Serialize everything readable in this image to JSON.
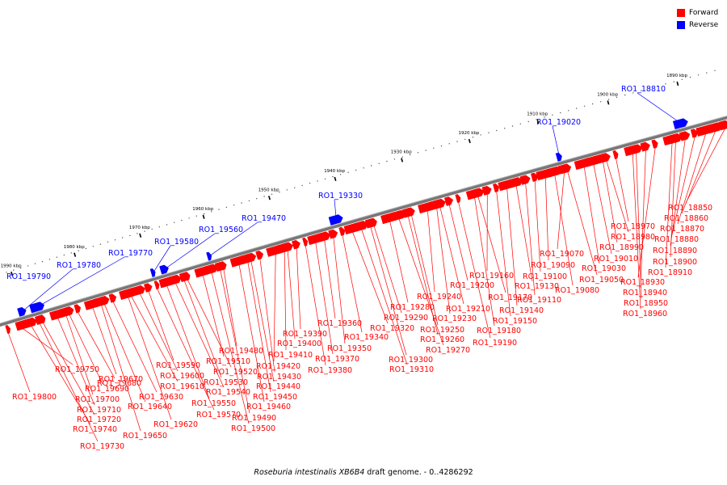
{
  "legend": {
    "items": [
      {
        "label": "Forward",
        "color": "#ff0000"
      },
      {
        "label": "Reverse",
        "color": "#0000ff"
      }
    ]
  },
  "caption": {
    "species": "Roseburia intestinalis XB6B4",
    "rest": " draft genome. - 0..4286292"
  },
  "ticks": [
    "1990 kbp",
    "1980 kbp",
    "1970 kbp",
    "1960 kbp",
    "1950 kbp",
    "1940 kbp",
    "1930 kbp",
    "1920 kbp",
    "1910 kbp",
    "1900 kbp",
    "1890 kbp"
  ],
  "reverse_genes": [
    "RO1_19790",
    "RO1_19780",
    "RO1_19770",
    "RO1_19580",
    "RO1_19560",
    "RO1_19470",
    "RO1_19330",
    "RO1_19020",
    "RO1_18810"
  ],
  "forward_genes": [
    "RO1_19800",
    "RO1_19750",
    "RO1_19740",
    "RO1_19730",
    "RO1_19720",
    "RO1_19710",
    "RO1_19700",
    "RO1_19690",
    "RO1_19680",
    "RO1_19670",
    "RO1_19650",
    "RO1_19640",
    "RO1_19630",
    "RO1_19620",
    "RO1_19610",
    "RO1_19600",
    "RO1_19590",
    "RO1_19570",
    "RO1_19550",
    "RO1_19540",
    "RO1_19530",
    "RO1_19520",
    "RO1_19510",
    "RO1_19500",
    "RO1_19490",
    "RO1_19480",
    "RO1_19460",
    "RO1_19450",
    "RO1_19440",
    "RO1_19430",
    "RO1_19420",
    "RO1_19410",
    "RO1_19400",
    "RO1_19390",
    "RO1_19380",
    "RO1_19370",
    "RO1_19360",
    "RO1_19350",
    "RO1_19340",
    "RO1_19320",
    "RO1_19310",
    "RO1_19300",
    "RO1_19290",
    "RO1_19280",
    "RO1_19270",
    "RO1_19260",
    "RO1_19250",
    "RO1_19240",
    "RO1_19230",
    "RO1_19210",
    "RO1_19200",
    "RO1_19190",
    "RO1_19180",
    "RO1_19170",
    "RO1_19160",
    "RO1_19150",
    "RO1_19140",
    "RO1_19130",
    "RO1_19110",
    "RO1_19100",
    "RO1_19090",
    "RO1_19080",
    "RO1_19070",
    "RO1_19050",
    "RO1_19030",
    "RO1_19010",
    "RO1_18990",
    "RO1_18980",
    "RO1_18970",
    "RO1_18960",
    "RO1_18950",
    "RO1_18940",
    "RO1_18930",
    "RO1_18910",
    "RO1_18900",
    "RO1_18890",
    "RO1_18880",
    "RO1_18870",
    "RO1_18860",
    "RO1_18850"
  ]
}
